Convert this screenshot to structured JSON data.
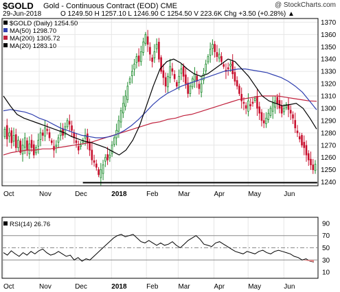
{
  "header": {
    "symbol": "$GOLD",
    "description": "Gold - Continuous Contract (EOD)  CME",
    "date": "29-Jun-2018",
    "ohlc_text": "O 1249.50  H 1257.10  L 1246.90  C 1254.50  V 223.6K  Chg +3.50 (+0.28%) ▲",
    "watermark": "@ StockCharts.com"
  },
  "chart_data": [
    {
      "type": "candlestick",
      "title": "$GOLD Gold - Continuous Contract (EOD) CME",
      "legend": [
        {
          "label": "$GOLD (Daily) 1254.50",
          "color": "#000000"
        },
        {
          "label": "MA(50) 1298.70",
          "color": "#3040b0"
        },
        {
          "label": "MA(200) 1305.72",
          "color": "#c0203c"
        },
        {
          "label": "MA(20) 1283.10",
          "color": "#000000"
        }
      ],
      "y_ticks": [
        1240,
        1250,
        1260,
        1270,
        1280,
        1290,
        1300,
        1310,
        1320,
        1330,
        1340,
        1350,
        1360,
        1370
      ],
      "ylim": [
        1237,
        1373
      ],
      "x_labels": [
        {
          "label": "Oct",
          "week": 0
        },
        {
          "label": "Nov",
          "week": 4.5
        },
        {
          "label": "Dec",
          "week": 9
        },
        {
          "label": "2018",
          "week": 13.6,
          "bold": true
        },
        {
          "label": "Feb",
          "week": 18
        },
        {
          "label": "Mar",
          "week": 22
        },
        {
          "label": "Apr",
          "week": 26.5
        },
        {
          "label": "May",
          "week": 30.8
        },
        {
          "label": "Jun",
          "week": 35.3
        }
      ],
      "support_line": {
        "value": 1239.5,
        "from_week": 10,
        "to_week": 39.5
      },
      "price_closes": [
        1283,
        1275,
        1280,
        1272,
        1278,
        1268,
        1274,
        1264,
        1270,
        1276,
        1266,
        1271,
        1268,
        1262,
        1268,
        1274,
        1280,
        1278,
        1284,
        1282,
        1276,
        1272,
        1266,
        1270,
        1276,
        1282,
        1278,
        1285,
        1290,
        1287,
        1282,
        1276,
        1272,
        1266,
        1270,
        1274,
        1278,
        1272,
        1266,
        1258,
        1256,
        1252,
        1246,
        1250,
        1254,
        1260,
        1258,
        1262,
        1270,
        1276,
        1282,
        1290,
        1298,
        1304,
        1310,
        1318,
        1324,
        1330,
        1336,
        1342,
        1338,
        1346,
        1354,
        1360,
        1352,
        1344,
        1338,
        1346,
        1352,
        1340,
        1330,
        1325,
        1318,
        1326,
        1334,
        1330,
        1324,
        1318,
        1326,
        1332,
        1326,
        1320,
        1312,
        1318,
        1324,
        1328,
        1322,
        1316,
        1320,
        1328,
        1336,
        1342,
        1348,
        1352,
        1346,
        1342,
        1344,
        1338,
        1334,
        1330,
        1332,
        1336,
        1328,
        1322,
        1318,
        1312,
        1306,
        1304,
        1300,
        1306,
        1302,
        1304,
        1308,
        1300,
        1296,
        1290,
        1288,
        1292,
        1296,
        1300,
        1304,
        1306,
        1304,
        1300,
        1296,
        1300,
        1303,
        1299,
        1296,
        1292,
        1284,
        1280,
        1275,
        1270,
        1268,
        1262,
        1258,
        1254,
        1250,
        1254.5
      ],
      "ma50": [
        1298,
        1299,
        1298,
        1297,
        1295,
        1292,
        1290,
        1287,
        1284,
        1282,
        1280,
        1278,
        1277,
        1276,
        1276,
        1277,
        1279,
        1282,
        1286,
        1291,
        1297,
        1303,
        1308,
        1312,
        1315,
        1318,
        1320,
        1322,
        1324,
        1326,
        1328,
        1330,
        1331,
        1332,
        1332,
        1331,
        1330,
        1329,
        1327,
        1325,
        1322,
        1318,
        1313,
        1306,
        1298.7
      ],
      "ma200": [
        1262,
        1264,
        1265,
        1266,
        1266,
        1267,
        1267,
        1268,
        1269,
        1270,
        1271,
        1272,
        1274,
        1276,
        1278,
        1280,
        1282,
        1284,
        1286,
        1288,
        1289,
        1291,
        1292,
        1294,
        1295,
        1297,
        1299,
        1301,
        1303,
        1305,
        1307,
        1308,
        1309,
        1310,
        1310,
        1310,
        1309,
        1308,
        1307,
        1306,
        1305.72
      ],
      "ma20": [
        1310,
        1302,
        1295,
        1292,
        1290,
        1288,
        1286,
        1284,
        1282,
        1280,
        1277,
        1275,
        1273,
        1272,
        1270,
        1268,
        1265,
        1262,
        1266,
        1274,
        1286,
        1302,
        1318,
        1332,
        1338,
        1340,
        1337,
        1332,
        1328,
        1326,
        1328,
        1332,
        1336,
        1340,
        1338,
        1332,
        1326,
        1318,
        1310,
        1306,
        1304,
        1302,
        1303,
        1304,
        1300,
        1292,
        1283.1
      ]
    },
    {
      "type": "line",
      "title": "RSI(14) 26.76",
      "legend": [
        {
          "label": "RSI(14) 26.76",
          "color": "#000000"
        }
      ],
      "y_ticks": [
        10,
        30,
        50,
        70,
        90
      ],
      "ylim": [
        0,
        100
      ],
      "reference_lines": [
        70,
        50,
        30
      ],
      "x_labels": [
        "Oct",
        "Nov",
        "Dec",
        "2018",
        "Feb",
        "Mar",
        "Apr",
        "May",
        "Jun"
      ],
      "values": [
        42,
        38,
        45,
        40,
        36,
        42,
        38,
        44,
        40,
        45,
        48,
        42,
        38,
        40,
        44,
        40,
        36,
        38,
        30,
        34,
        28,
        32,
        30,
        36,
        42,
        48,
        54,
        60,
        66,
        70,
        72,
        68,
        70,
        72,
        66,
        60,
        58,
        62,
        58,
        54,
        58,
        54,
        56,
        60,
        54,
        50,
        56,
        62,
        66,
        70,
        64,
        56,
        54,
        52,
        58,
        60,
        56,
        52,
        48,
        44,
        42,
        40,
        44,
        42,
        40,
        44,
        46,
        42,
        40,
        44,
        46,
        44,
        42,
        40,
        36,
        34,
        30,
        32,
        28,
        26.76
      ]
    }
  ]
}
